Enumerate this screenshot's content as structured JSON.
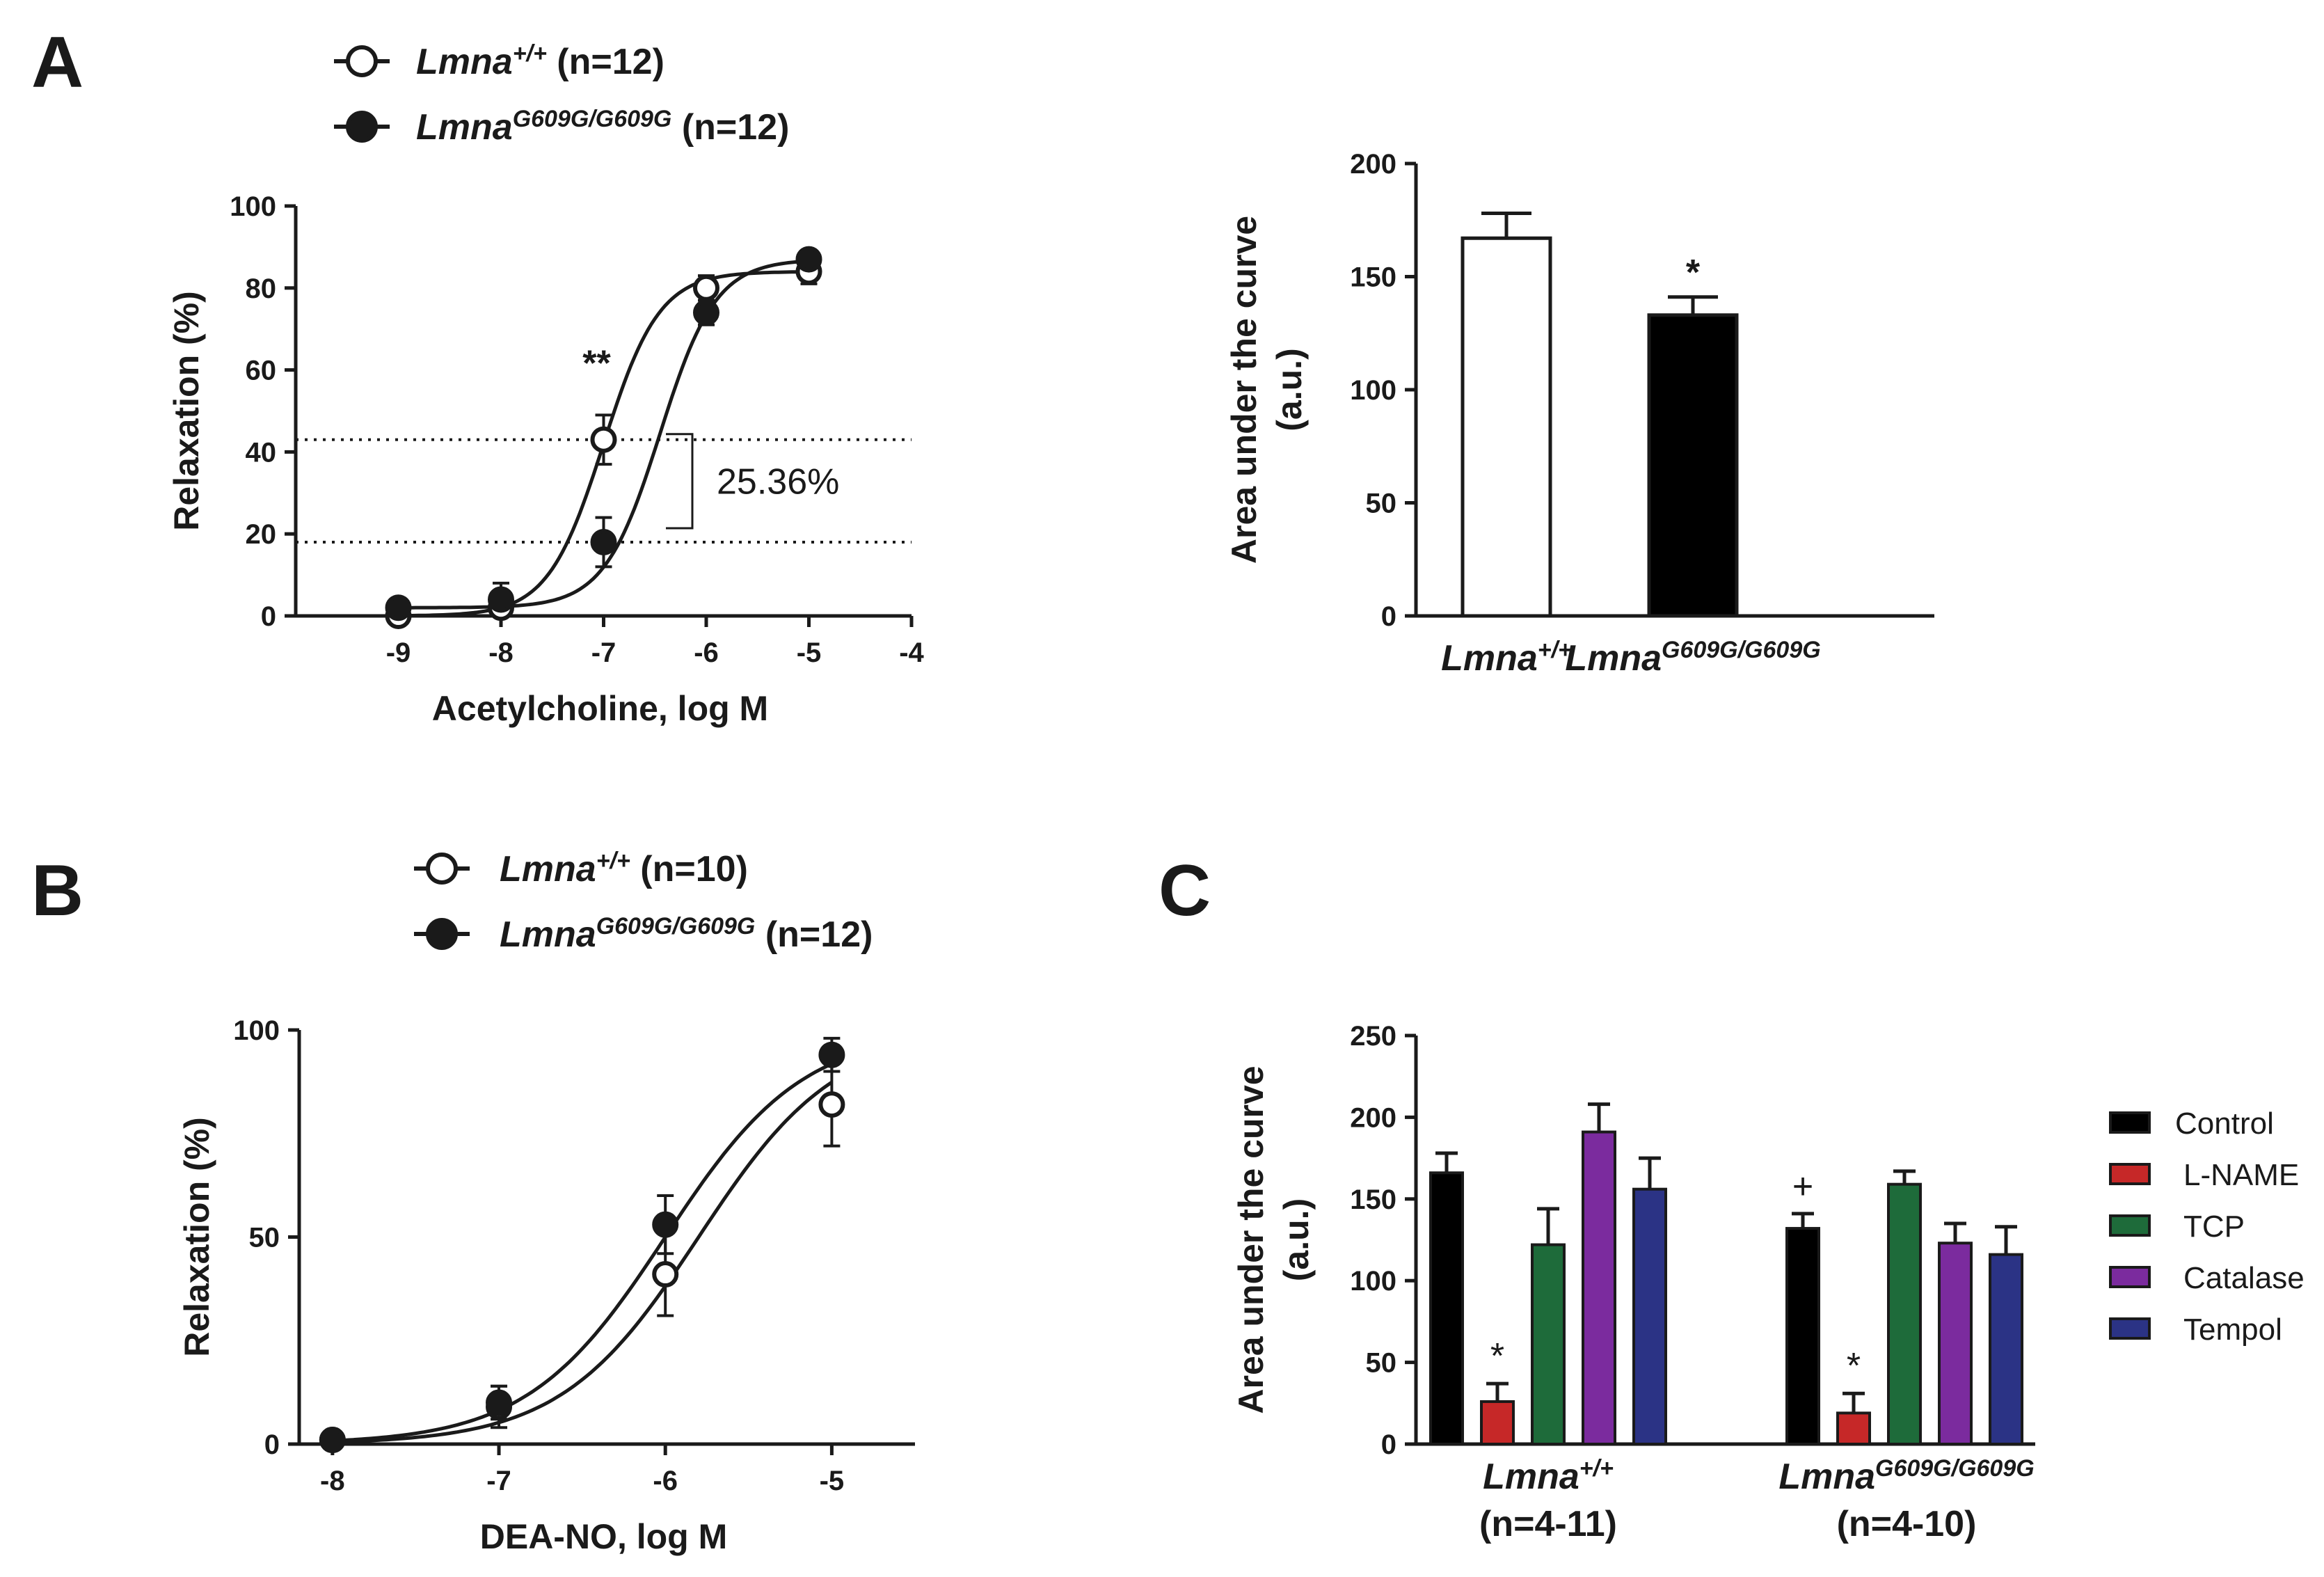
{
  "panel_labels": {
    "a": "A",
    "b": "B",
    "c": "C"
  },
  "chart_data": [
    {
      "id": "A-curve",
      "type": "line",
      "xlabel": "Acetylcholine, log M",
      "ylabel": "Relaxation (%)",
      "xlim": [
        -10,
        -4
      ],
      "ylim": [
        0,
        100
      ],
      "x_ticks": [
        -9,
        -8,
        -7,
        -6,
        -5,
        -4
      ],
      "y_ticks": [
        0,
        20,
        40,
        60,
        80,
        100
      ],
      "legend": [
        {
          "name": "Lmna",
          "superscript": "+/+",
          "n": "(n=12)",
          "marker": "open-circle"
        },
        {
          "name": "Lmna",
          "superscript": "G609G/G609G",
          "n": "(n=12)",
          "marker": "filled-circle"
        }
      ],
      "series": [
        {
          "name": "Lmna+/+",
          "x": [
            -9,
            -8,
            -7,
            -6,
            -5
          ],
          "values": [
            0,
            2,
            43,
            80,
            84
          ],
          "err": [
            0.5,
            1.5,
            6,
            3,
            3
          ],
          "ec50": -7.0
        },
        {
          "name": "LmnaG609G/G609G",
          "x": [
            -9,
            -8,
            -7,
            -6,
            -5
          ],
          "values": [
            2,
            4,
            18,
            74,
            87
          ],
          "err": [
            0.5,
            4,
            6,
            3,
            2
          ],
          "ec50": -6.45
        }
      ],
      "reference_lines": [
        43,
        18
      ],
      "annotations": {
        "difference": "25.36%",
        "significance": "**",
        "significance_x": -7
      }
    },
    {
      "id": "A-bar",
      "type": "bar",
      "ylabel": "Area under the curve (a.u.)",
      "ylabel_lines": [
        "Area under the curve",
        "(a.u.)"
      ],
      "ylim": [
        0,
        200
      ],
      "y_ticks": [
        0,
        50,
        100,
        150,
        200
      ],
      "categories": [
        {
          "name": "Lmna",
          "superscript": "+/+"
        },
        {
          "name": "Lmna",
          "superscript": "G609G/G609G"
        }
      ],
      "values": [
        167,
        133
      ],
      "err": [
        11,
        8
      ],
      "fill": [
        "#ffffff",
        "#000000"
      ],
      "significance": [
        "",
        "*"
      ]
    },
    {
      "id": "B-curve",
      "type": "line",
      "xlabel": "DEA-NO, log M",
      "ylabel": "Relaxation (%)",
      "xlim": [
        -8.2,
        -4.5
      ],
      "ylim": [
        0,
        100
      ],
      "x_ticks": [
        -8,
        -7,
        -6,
        -5
      ],
      "y_ticks": [
        0,
        50,
        100
      ],
      "legend": [
        {
          "name": "Lmna",
          "superscript": "+/+",
          "n": "(n=10)",
          "marker": "open-circle"
        },
        {
          "name": "Lmna",
          "superscript": "G609G/G609G",
          "n": "(n=12)",
          "marker": "filled-circle"
        }
      ],
      "series": [
        {
          "name": "Lmna+/+",
          "x": [
            -8,
            -7,
            -6,
            -5
          ],
          "values": [
            1,
            9,
            41,
            82
          ],
          "err": [
            0.5,
            5,
            10,
            10
          ],
          "ec50": -5.8,
          "top": 100
        },
        {
          "name": "LmnaG609G/G609G",
          "x": [
            -8,
            -7,
            -6,
            -5
          ],
          "values": [
            1,
            10,
            53,
            94
          ],
          "err": [
            0.5,
            4,
            7,
            4
          ],
          "ec50": -6.0,
          "top": 100
        }
      ]
    },
    {
      "id": "C-bar",
      "type": "bar",
      "ylabel": "Area under the curve (a.u.)",
      "ylabel_lines": [
        "Area under the curve",
        "(a.u.)"
      ],
      "ylim": [
        0,
        250
      ],
      "y_ticks": [
        0,
        50,
        100,
        150,
        200,
        250
      ],
      "groups": [
        {
          "name": "Lmna",
          "superscript": "+/+",
          "n": "(n=4-11)"
        },
        {
          "name": "Lmna",
          "superscript": "G609G/G609G",
          "n": "(n=4-10)"
        }
      ],
      "series": [
        {
          "name": "Control",
          "color": "#000000",
          "values": [
            166,
            132
          ],
          "err": [
            12,
            9
          ]
        },
        {
          "name": "L-NAME",
          "color": "#c62828",
          "values": [
            26,
            19
          ],
          "err": [
            11,
            12
          ]
        },
        {
          "name": "TCP",
          "color": "#1e6b3a",
          "values": [
            122,
            159
          ],
          "err": [
            22,
            8
          ]
        },
        {
          "name": "Catalase",
          "color": "#7b2b9e",
          "values": [
            191,
            123
          ],
          "err": [
            17,
            12
          ]
        },
        {
          "name": "Tempol",
          "color": "#2b3385",
          "values": [
            156,
            116
          ],
          "err": [
            19,
            17
          ]
        }
      ],
      "significance": [
        {
          "group": 0,
          "series": "L-NAME",
          "mark": "*"
        },
        {
          "group": 1,
          "series": "Control",
          "mark": "+"
        },
        {
          "group": 1,
          "series": "L-NAME",
          "mark": "*"
        }
      ]
    }
  ]
}
